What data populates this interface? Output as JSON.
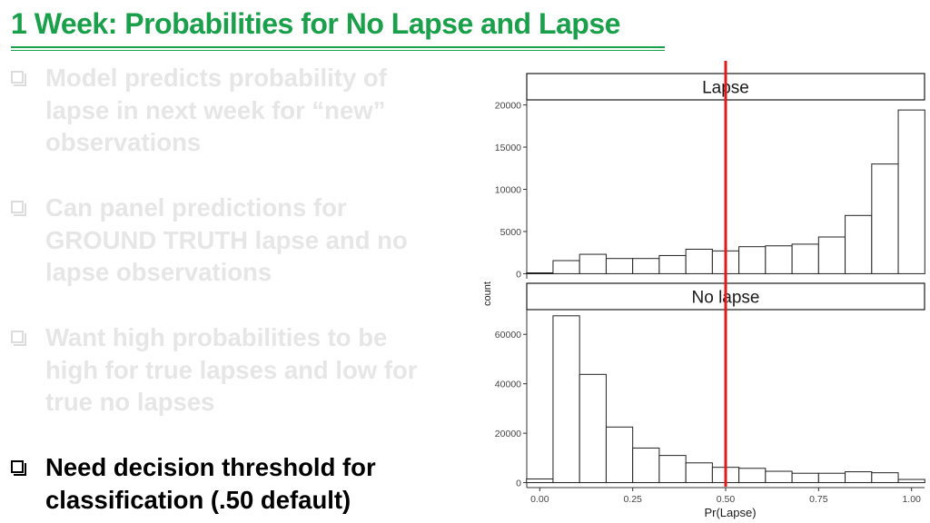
{
  "slide": {
    "title": "1 Week: Probabilities for No Lapse and Lapse",
    "bullets": [
      {
        "text": "Model predicts probability of lapse in next week for “new” observations",
        "active": false
      },
      {
        "text": "Can panel predictions for GROUND TRUTH lapse and no lapse observations",
        "active": false
      },
      {
        "text": "Want high probabilities to be high for true lapses and low for true no lapses",
        "active": false
      },
      {
        "text": "Need decision threshold for classification (.50 default)",
        "active": true
      }
    ]
  },
  "chart_data": {
    "type": "bar",
    "subtype": "faceted histogram",
    "xlabel": "Pr(Lapse)",
    "ylabel": "count",
    "x_ticks": [
      "0.00",
      "0.25",
      "0.50",
      "0.75",
      "1.00"
    ],
    "xlim": [
      -0.035,
      1.035
    ],
    "bin_edges": [
      -0.0357,
      0.0357,
      0.1071,
      0.1786,
      0.25,
      0.3214,
      0.3929,
      0.4643,
      0.5357,
      0.6071,
      0.6786,
      0.75,
      0.8214,
      0.8929,
      0.9643,
      1.0357
    ],
    "threshold": {
      "value": 0.5,
      "color": "#e0191b"
    },
    "panels": [
      {
        "label": "Lapse",
        "y_ticks": [
          "0",
          "5000",
          "10000",
          "15000",
          "20000"
        ],
        "ylim": [
          -600,
          20600
        ],
        "values": [
          100,
          1550,
          2300,
          1800,
          1800,
          2150,
          2900,
          2700,
          3200,
          3300,
          3500,
          4350,
          6900,
          13000,
          19400
        ]
      },
      {
        "label": "No lapse",
        "y_ticks": [
          "0",
          "20000",
          "40000",
          "60000"
        ],
        "ylim": [
          -2000,
          70000
        ],
        "values": [
          1500,
          67500,
          43800,
          22500,
          14000,
          11000,
          8000,
          6200,
          5800,
          4600,
          3800,
          3800,
          4400,
          4000,
          1300
        ]
      }
    ]
  }
}
